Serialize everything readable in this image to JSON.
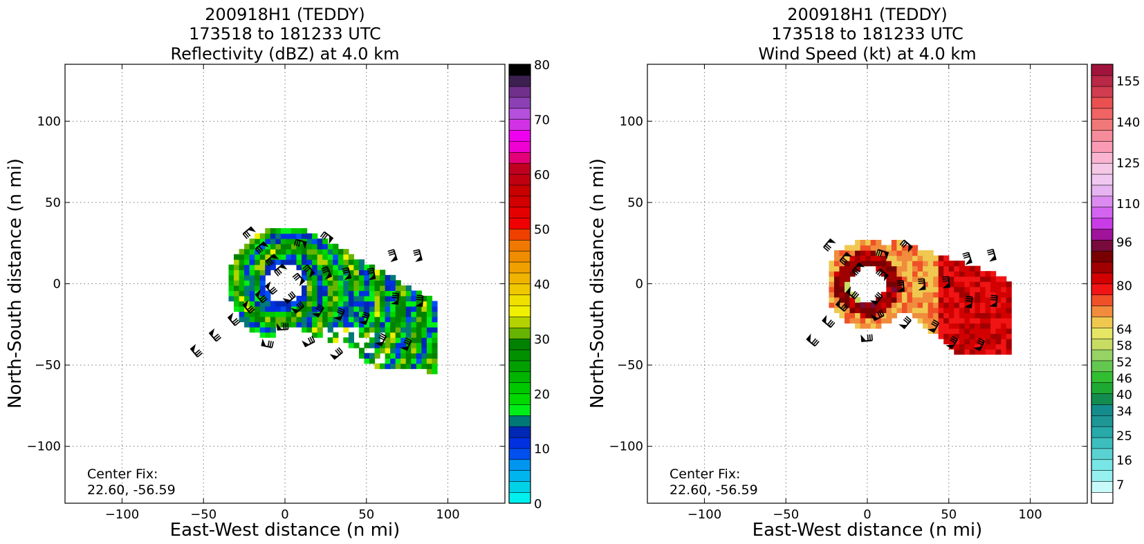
{
  "chart_data": [
    {
      "type": "heatmap",
      "title_lines": [
        "200918H1 (TEDDY)",
        "173518 to 181233 UTC",
        "Reflectivity (dBZ) at 4.0 km"
      ],
      "xlabel": "East-West distance (n mi)",
      "ylabel": "North-South distance (n mi)",
      "xlim": [
        -135,
        135
      ],
      "ylim": [
        -135,
        135
      ],
      "xticks": [
        -100,
        -50,
        0,
        50,
        100
      ],
      "yticks": [
        -100,
        -50,
        0,
        50,
        100
      ],
      "grid": true,
      "annotation": [
        "Center Fix:",
        "22.60, -56.59"
      ],
      "storm_center": [
        0,
        0
      ],
      "eye_radius": 12,
      "data_extent": {
        "x": [
          -33,
          100
        ],
        "y": [
          -57,
          37
        ]
      },
      "colorbar": {
        "label_values": [
          0,
          10,
          20,
          30,
          40,
          50,
          60,
          70,
          80
        ],
        "range": [
          0,
          80
        ],
        "colors": [
          "#00f0f0",
          "#00d2e8",
          "#00b4ee",
          "#0096f0",
          "#0050f0",
          "#0030e0",
          "#0028b4",
          "#007878",
          "#00ee18",
          "#00d800",
          "#00c800",
          "#00b400",
          "#00a000",
          "#009000",
          "#008200",
          "#66b400",
          "#b4d200",
          "#f0f000",
          "#f0e000",
          "#f0c800",
          "#f0b400",
          "#f0a000",
          "#f08c00",
          "#f07800",
          "#f04000",
          "#f00000",
          "#e40000",
          "#d20000",
          "#c80000",
          "#c00010",
          "#c00020",
          "#e4007a",
          "#f000d2",
          "#f000f0",
          "#d232e6",
          "#b450dc",
          "#8c40b4",
          "#70308c",
          "#3c2050",
          "#000000"
        ]
      },
      "barb_field": {
        "rings": [
          10,
          18,
          28,
          40,
          55,
          70,
          85
        ],
        "arc_deg": [
          -140,
          130
        ]
      }
    },
    {
      "type": "heatmap",
      "title_lines": [
        "200918H1 (TEDDY)",
        "173518 to 181233 UTC",
        "Wind Speed (kt) at 4.0 km"
      ],
      "xlabel": "East-West distance (n mi)",
      "ylabel": "North-South distance (n mi)",
      "xlim": [
        -135,
        135
      ],
      "ylim": [
        -135,
        135
      ],
      "xticks": [
        -100,
        -50,
        0,
        50,
        100
      ],
      "yticks": [
        -100,
        -50,
        0,
        50,
        100
      ],
      "grid": true,
      "annotation": [
        "Center Fix:",
        "22.60, -56.59"
      ],
      "storm_center": [
        0,
        0
      ],
      "eye_radius": 11,
      "data_extent": {
        "x": [
          -22,
          87
        ],
        "y": [
          -45,
          29
        ]
      },
      "colorbar": {
        "label_values": [
          7,
          16,
          25,
          34,
          40,
          46,
          52,
          58,
          64,
          80,
          96,
          110,
          125,
          140,
          155
        ],
        "range": [
          0,
          161
        ],
        "colors": [
          "#ffffff",
          "#c8fafa",
          "#96f0f0",
          "#78e6e6",
          "#5ad2d2",
          "#3cbebe",
          "#28aaaa",
          "#1e9696",
          "#148c8c",
          "#148c50",
          "#1eaa32",
          "#32be32",
          "#64c850",
          "#96d264",
          "#c8dc64",
          "#e6e664",
          "#f0c850",
          "#f08c3c",
          "#f05028",
          "#f01414",
          "#d20000",
          "#a00000",
          "#780000",
          "#780a3c",
          "#a0149b",
          "#c83ce6",
          "#d264f0",
          "#dc8cf0",
          "#e6b4f0",
          "#f0c8f0",
          "#f5c8e6",
          "#fab4d2",
          "#fa9ab4",
          "#f58c9b",
          "#f07878",
          "#f06464",
          "#eb5050",
          "#d23c50",
          "#b92846",
          "#a0143c"
        ]
      },
      "barb_field": {
        "rings": [
          12,
          22,
          35,
          50,
          65,
          80
        ],
        "arc_deg": [
          -130,
          140
        ]
      }
    }
  ]
}
